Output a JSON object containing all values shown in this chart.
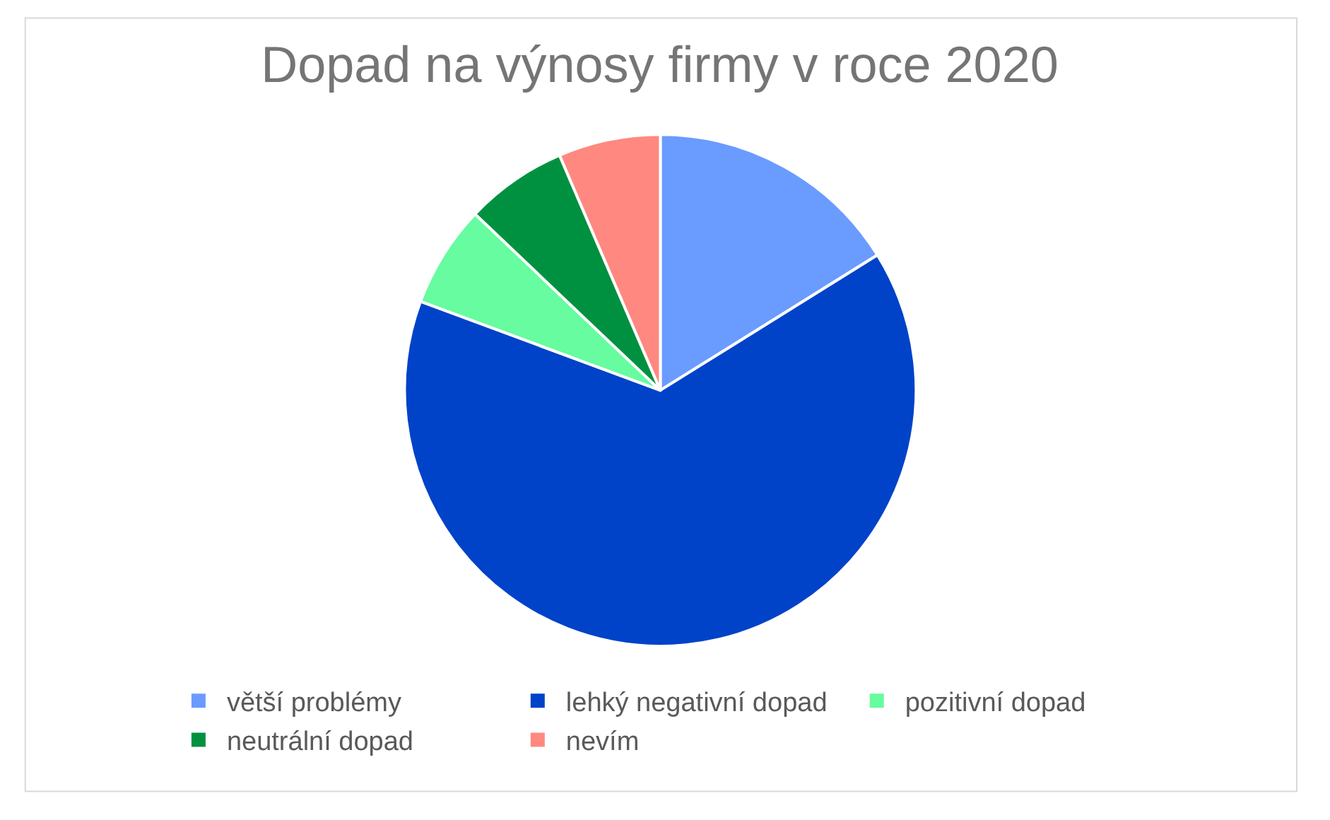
{
  "chart_data": {
    "type": "pie",
    "title": "Dopad na výnosy firmy v roce 2020",
    "categories": [
      "větší problémy",
      "lehký negativní dopad",
      "pozitivní dopad",
      "neutrální dopad",
      "nevím"
    ],
    "values": [
      16.13,
      64.52,
      6.45,
      6.45,
      6.45
    ],
    "colors": [
      "#6a9bff",
      "#0043c9",
      "#66fc9f",
      "#009140",
      "#ff8880"
    ],
    "legend": "bottom"
  }
}
